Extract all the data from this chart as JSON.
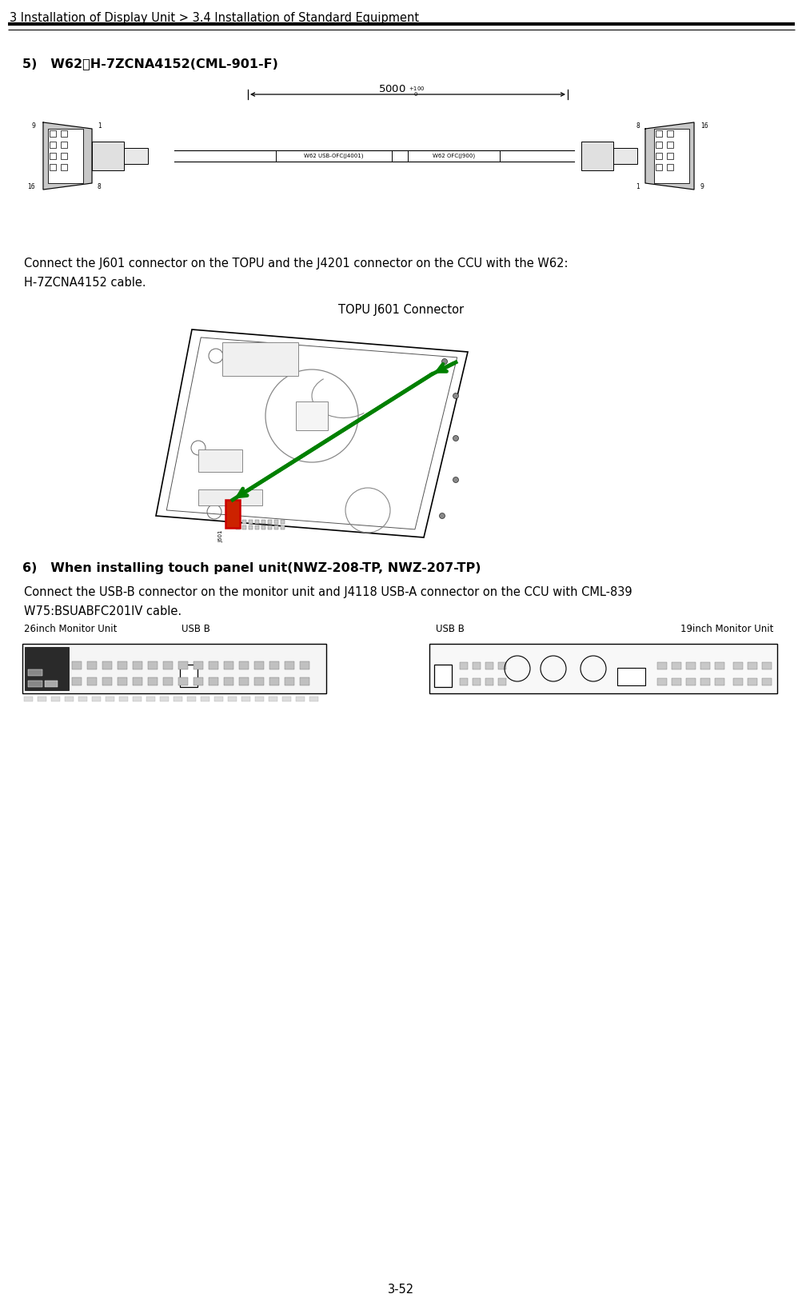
{
  "bg_color": "#ffffff",
  "header_text": "3 Installation of Display Unit > 3.4 Installation of Standard Equipment",
  "header_fontsize": 10.5,
  "header_color": "#000000",
  "page_number": "3-52",
  "section5_title": "5)   W62：H-7ZCNA4152(CML-901-F)",
  "section5_title_fontsize": 11.5,
  "para1_line1": "Connect the J601 connector on the TOPU and the J4201 connector on the CCU with the W62:",
  "para1_line2": "H-7ZCNA4152 cable.",
  "topu_label": "TOPU J601 Connector",
  "section6_title": "6)   When installing touch panel unit(NWZ-208-TP, NWZ-207-TP)",
  "section6_title_fontsize": 11.5,
  "para2_line1": "Connect the USB-B connector on the monitor unit and J4118 USB-A connector on the CCU with CML-839",
  "para2_line2": "W75:BSUABFC201IV cable.",
  "label_26inch": "26inch Monitor Unit",
  "label_usb_b_left": "USB B",
  "label_usb_b_right": "USB B",
  "label_19inch": "19inch Monitor Unit",
  "text_fontsize": 10.5,
  "small_fontsize": 8.5,
  "line_color": "#000000",
  "gray_light": "#d8d8d8",
  "gray_mid": "#aaaaaa",
  "gray_dark": "#555555",
  "green_arrow": "#008000",
  "red_connector": "#cc0000"
}
